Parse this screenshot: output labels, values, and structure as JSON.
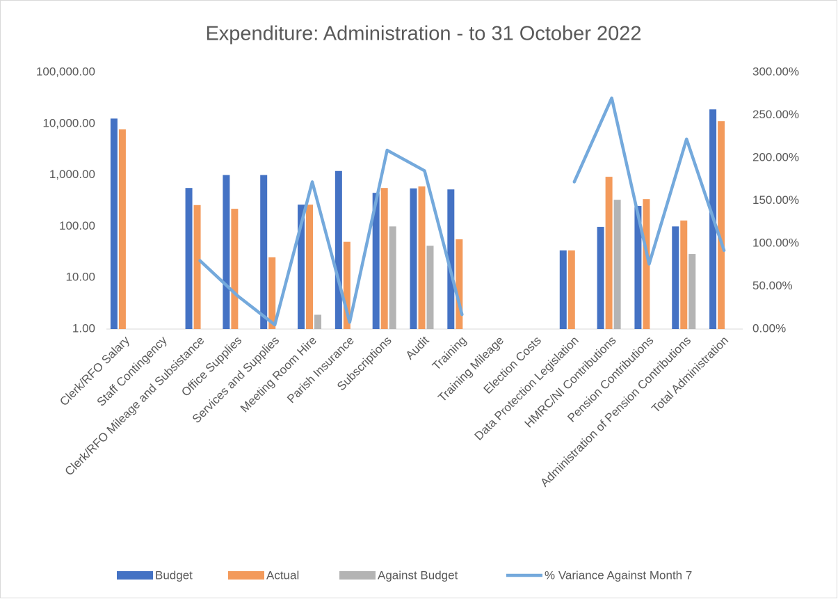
{
  "chart_data": {
    "type": "bar",
    "title": "Expenditure: Administration - to 31 October 2022",
    "categories": [
      "Clerk/RFO Salary",
      "Staff Contingency",
      "Clerk/RFO Mileage and Subsistance",
      "Office Supplies",
      "Services and Supplies",
      "Meeting Room Hire",
      "Parish Insurance",
      "Subscriptions",
      "Audit",
      "Training",
      "Training Mileage",
      "Election Costs",
      "Data Protection Legislation",
      "HMRC/NI Contributions",
      "Pension Contributions",
      "Administration of Pension Contributions",
      "Total Administration"
    ],
    "series": [
      {
        "name": "Budget",
        "type": "bar",
        "color": "#4472c4",
        "values": [
          12600,
          null,
          560,
          1000,
          1000,
          265,
          1200,
          450,
          550,
          525,
          null,
          null,
          34,
          98,
          250,
          100,
          19000
        ]
      },
      {
        "name": "Actual",
        "type": "bar",
        "color": "#f39a5b",
        "values": [
          7750,
          null,
          260,
          220,
          25,
          265,
          50,
          560,
          600,
          56,
          null,
          null,
          34,
          925,
          340,
          130,
          11200
        ]
      },
      {
        "name": "Against Budget",
        "type": "bar",
        "color": "#b4b4b4",
        "values": [
          null,
          null,
          null,
          null,
          null,
          1.9,
          null,
          100,
          42,
          null,
          null,
          null,
          null,
          330,
          null,
          29,
          null
        ]
      },
      {
        "name": "% Variance Against Month 7",
        "type": "line",
        "axis": "y2",
        "color": "#74a9dc",
        "values": [
          null,
          null,
          80,
          39,
          5,
          172,
          8,
          209,
          185,
          17,
          null,
          null,
          172,
          270,
          76,
          222,
          92
        ]
      }
    ],
    "log_scale": true,
    "ylim": [
      1,
      100000
    ],
    "yticks": [
      {
        "value": 1,
        "label": "1.00"
      },
      {
        "value": 10,
        "label": "10.00"
      },
      {
        "value": 100,
        "label": "100.00"
      },
      {
        "value": 1000,
        "label": "1,000.00"
      },
      {
        "value": 10000,
        "label": "10,000.00"
      },
      {
        "value": 100000,
        "label": "100,000.00"
      }
    ],
    "y2lim": [
      0,
      300
    ],
    "y2ticks": [
      {
        "value": 0,
        "label": "0.00%"
      },
      {
        "value": 50,
        "label": "50.00%"
      },
      {
        "value": 100,
        "label": "100.00%"
      },
      {
        "value": 150,
        "label": "150.00%"
      },
      {
        "value": 200,
        "label": "200.00%"
      },
      {
        "value": 250,
        "label": "250.00%"
      },
      {
        "value": 300,
        "label": "300.00%"
      }
    ],
    "grid": false,
    "legend": "bottom"
  }
}
